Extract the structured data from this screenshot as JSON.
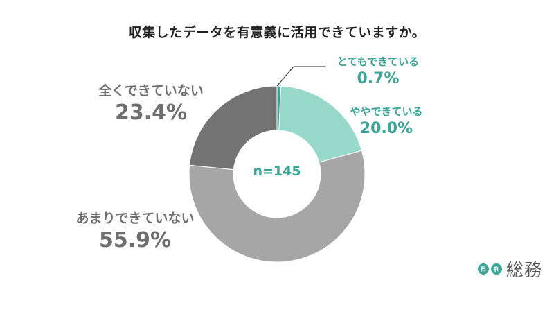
{
  "chart_data": {
    "type": "pie",
    "title": "収集したデータを有意義に活用できていますか。",
    "center_label": "n=145",
    "categories": [
      "とてもできている",
      "ややできている",
      "あまりできていない",
      "全くできていない"
    ],
    "values": [
      0.7,
      20.0,
      55.9,
      23.4
    ],
    "value_labels": [
      "0.7%",
      "20.0%",
      "55.9%",
      "23.4%"
    ],
    "colors": [
      "#3aa597",
      "#98d8cb",
      "#a6a6a6",
      "#737373"
    ]
  },
  "logo": {
    "badge_1": "月",
    "badge_2": "刊",
    "text": "総務"
  }
}
